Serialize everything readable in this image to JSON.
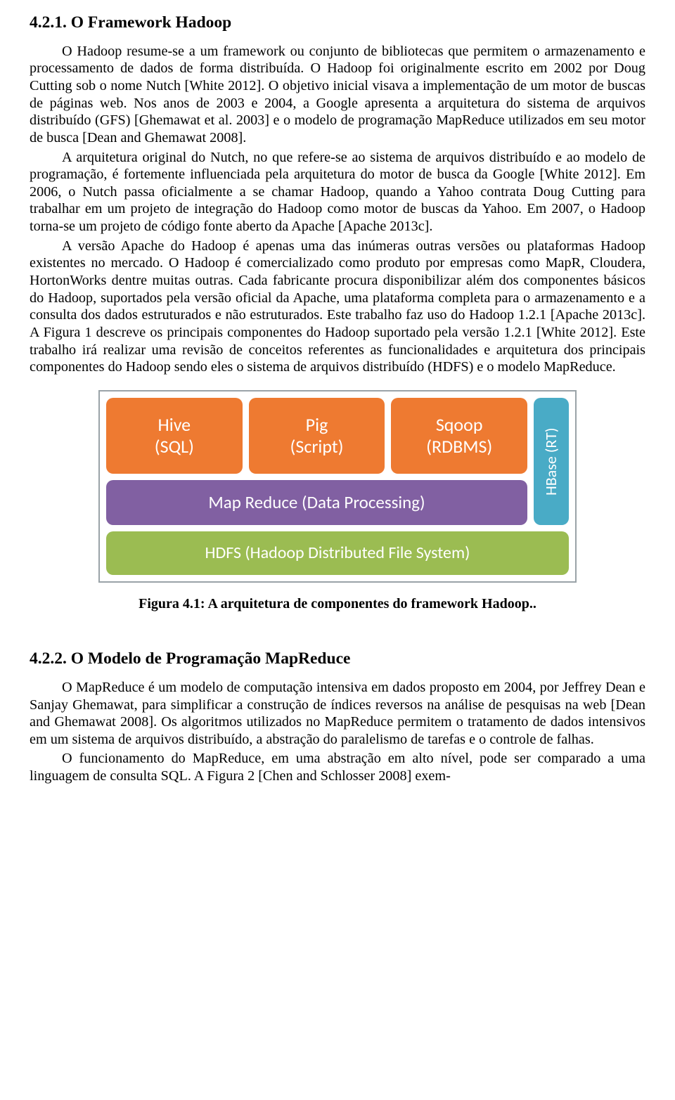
{
  "heading1": "4.2.1. O Framework Hadoop",
  "p1": "O Hadoop resume-se a um framework ou conjunto de bibliotecas que permitem o armazenamento e processamento de dados de forma distribuída. O Hadoop foi originalmente escrito em 2002 por Doug Cutting sob o nome Nutch [White 2012]. O objetivo inicial visava a implementação de um motor de buscas de páginas web. Nos anos de 2003 e 2004, a Google apresenta a arquitetura do sistema de arquivos distribuído (GFS) [Ghemawat et al. 2003] e o modelo de programação MapReduce utilizados em seu motor de busca [Dean and Ghemawat 2008].",
  "p2": "A arquitetura original do Nutch, no que refere-se ao sistema de arquivos distribuído e ao modelo de programação, é fortemente influenciada pela arquitetura do motor de busca da Google [White 2012]. Em 2006, o Nutch passa oficialmente a se chamar Hadoop, quando a Yahoo contrata Doug Cutting para trabalhar em um projeto de integração do Hadoop como motor de buscas da Yahoo. Em 2007, o Hadoop torna-se um projeto de código fonte aberto da Apache [Apache 2013c].",
  "p3": "A versão Apache do Hadoop é apenas uma das inúmeras outras versões ou plataformas Hadoop existentes no mercado. O Hadoop é comercializado como produto por empresas como MapR, Cloudera, HortonWorks dentre muitas outras. Cada fabricante procura disponibilizar além dos componentes básicos do Hadoop, suportados pela versão oficial da Apache, uma plataforma completa para o armazenamento e a consulta dos dados estruturados e não estruturados. Este trabalho faz uso do Hadoop 1.2.1 [Apache 2013c]. A Figura 1 descreve os principais componentes do Hadoop suportado pela versão 1.2.1 [White 2012]. Este trabalho irá realizar uma revisão de conceitos referentes as funcionalidades e arquitetura dos principais componentes do Hadoop sendo eles o sistema de arquivos distribuído (HDFS) e o modelo MapReduce.",
  "caption": "Figura 4.1: A arquitetura de componentes do framework Hadoop..",
  "heading2": "4.2.2. O Modelo de Programação MapReduce",
  "p4": "O MapReduce é um modelo de computação intensiva em dados proposto em 2004, por Jeffrey Dean e Sanjay Ghemawat, para simplificar a construção de índices reversos na análise de pesquisas na web [Dean and Ghemawat 2008]. Os algoritmos utilizados no MapReduce permitem o tratamento de dados intensivos em um sistema de arquivos distribuído, a abstração do paralelismo de tarefas e o controle de falhas.",
  "p5": "O funcionamento do MapReduce, em uma abstração em alto nível, pode ser comparado a uma linguagem de consulta SQL. A Figura 2 [Chen and Schlosser 2008] exem-",
  "diagram": {
    "type": "infographic",
    "border_color": "#9aa3a8",
    "background_color": "#ffffff",
    "font_family": "Segoe UI Light",
    "blocks": {
      "hive": {
        "line1": "Hive",
        "line2": "(SQL)",
        "color": "#ee7a31"
      },
      "pig": {
        "line1": "Pig",
        "line2": "(Script)",
        "color": "#ee7a31"
      },
      "sqoop": {
        "line1": "Sqoop",
        "line2": "(RDBMS)",
        "color": "#ee7a31"
      },
      "mapreduce": {
        "label": "Map Reduce (Data Processing)",
        "color": "#8160a2"
      },
      "hdfs": {
        "label": "HDFS (Hadoop Distributed File System)",
        "color": "#9bbc52"
      },
      "hbase": {
        "label": "HBase (RT)",
        "color": "#49abc6"
      }
    }
  }
}
